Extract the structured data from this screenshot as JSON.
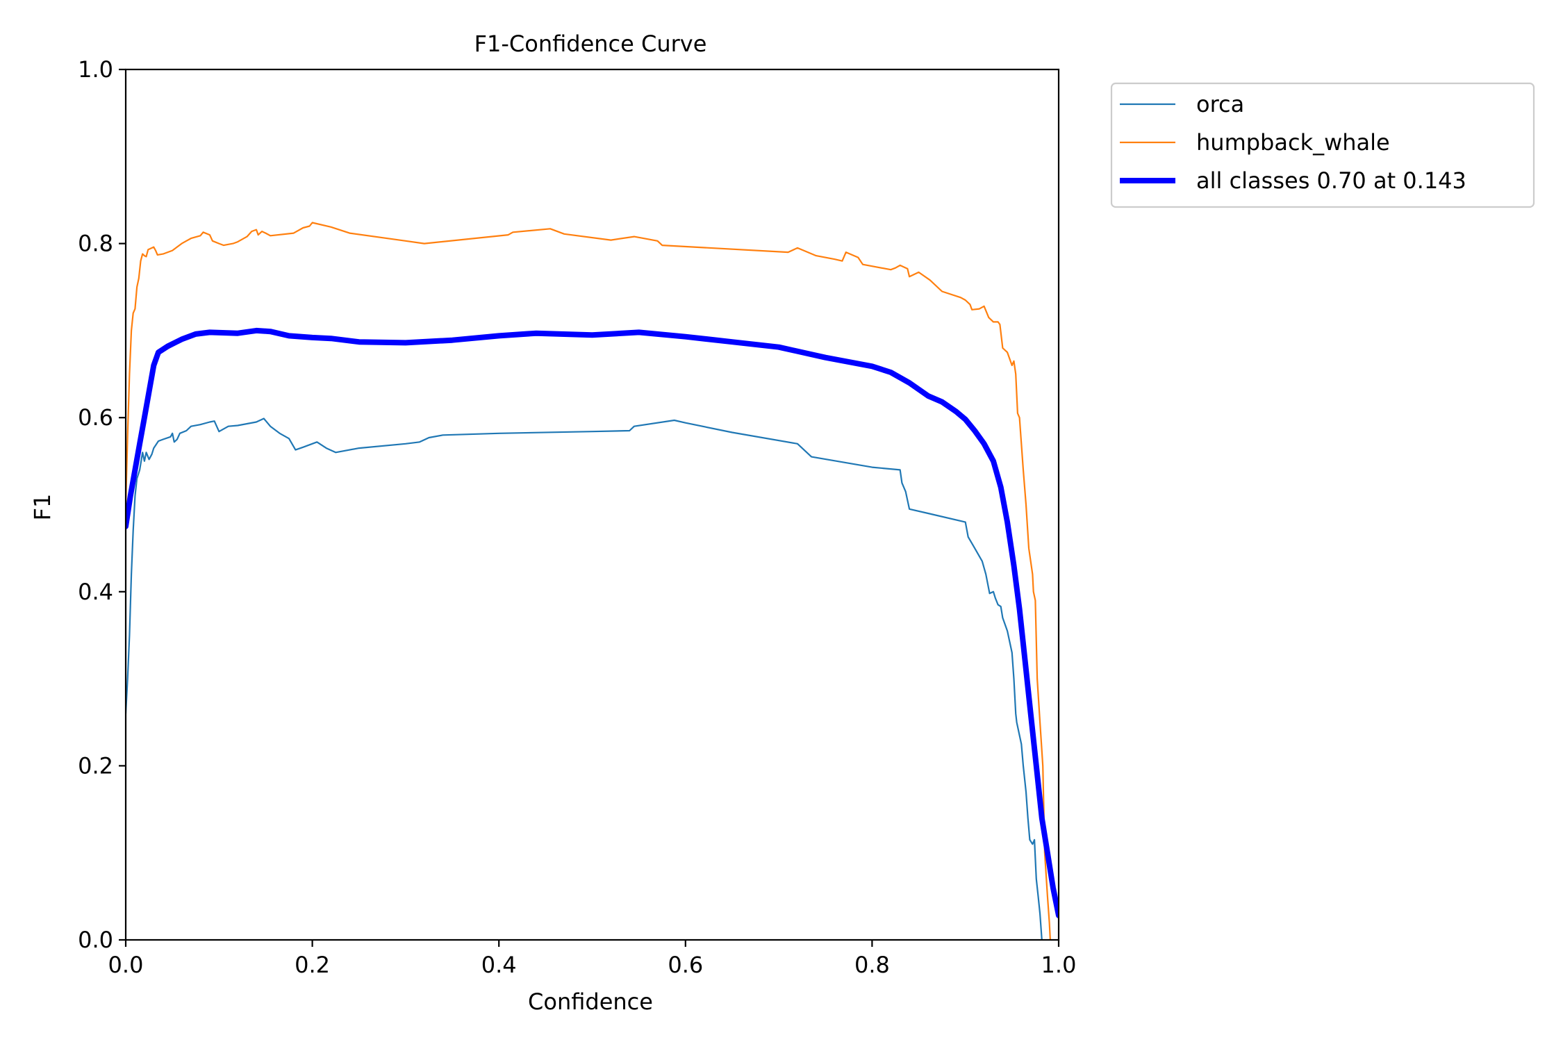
{
  "chart_data": {
    "type": "line",
    "title": "F1-Confidence Curve",
    "xlabel": "Confidence",
    "ylabel": "F1",
    "xlim": [
      0.0,
      1.0
    ],
    "ylim": [
      0.0,
      1.0
    ],
    "xticks": [
      "0.0",
      "0.2",
      "0.4",
      "0.6",
      "0.8",
      "1.0"
    ],
    "yticks": [
      "0.0",
      "0.2",
      "0.4",
      "0.6",
      "0.8",
      "1.0"
    ],
    "grid": false,
    "legend_position": "outside-top-right",
    "series": [
      {
        "name": "orca",
        "color": "#1f77b4",
        "weight": "thin",
        "points": [
          [
            0.0,
            0.26
          ],
          [
            0.002,
            0.3
          ],
          [
            0.004,
            0.35
          ],
          [
            0.006,
            0.42
          ],
          [
            0.008,
            0.47
          ],
          [
            0.01,
            0.51
          ],
          [
            0.012,
            0.53
          ],
          [
            0.015,
            0.54
          ],
          [
            0.018,
            0.56
          ],
          [
            0.02,
            0.55
          ],
          [
            0.022,
            0.56
          ],
          [
            0.025,
            0.552
          ],
          [
            0.028,
            0.558
          ],
          [
            0.03,
            0.565
          ],
          [
            0.035,
            0.573
          ],
          [
            0.04,
            0.575
          ],
          [
            0.048,
            0.578
          ],
          [
            0.05,
            0.582
          ],
          [
            0.052,
            0.572
          ],
          [
            0.055,
            0.575
          ],
          [
            0.058,
            0.582
          ],
          [
            0.065,
            0.585
          ],
          [
            0.07,
            0.59
          ],
          [
            0.08,
            0.592
          ],
          [
            0.09,
            0.595
          ],
          [
            0.095,
            0.596
          ],
          [
            0.1,
            0.584
          ],
          [
            0.11,
            0.59
          ],
          [
            0.12,
            0.591
          ],
          [
            0.14,
            0.595
          ],
          [
            0.148,
            0.599
          ],
          [
            0.155,
            0.59
          ],
          [
            0.165,
            0.582
          ],
          [
            0.175,
            0.576
          ],
          [
            0.182,
            0.563
          ],
          [
            0.19,
            0.566
          ],
          [
            0.2,
            0.57
          ],
          [
            0.205,
            0.572
          ],
          [
            0.215,
            0.565
          ],
          [
            0.225,
            0.56
          ],
          [
            0.25,
            0.565
          ],
          [
            0.3,
            0.57
          ],
          [
            0.315,
            0.572
          ],
          [
            0.325,
            0.577
          ],
          [
            0.34,
            0.58
          ],
          [
            0.4,
            0.582
          ],
          [
            0.5,
            0.584
          ],
          [
            0.54,
            0.585
          ],
          [
            0.545,
            0.59
          ],
          [
            0.588,
            0.597
          ],
          [
            0.6,
            0.594
          ],
          [
            0.65,
            0.583
          ],
          [
            0.72,
            0.57
          ],
          [
            0.735,
            0.555
          ],
          [
            0.8,
            0.543
          ],
          [
            0.83,
            0.54
          ],
          [
            0.832,
            0.525
          ],
          [
            0.836,
            0.515
          ],
          [
            0.84,
            0.495
          ],
          [
            0.86,
            0.49
          ],
          [
            0.9,
            0.48
          ],
          [
            0.903,
            0.463
          ],
          [
            0.91,
            0.45
          ],
          [
            0.918,
            0.435
          ],
          [
            0.922,
            0.42
          ],
          [
            0.926,
            0.398
          ],
          [
            0.93,
            0.4
          ],
          [
            0.932,
            0.393
          ],
          [
            0.935,
            0.385
          ],
          [
            0.938,
            0.383
          ],
          [
            0.94,
            0.37
          ],
          [
            0.945,
            0.355
          ],
          [
            0.95,
            0.33
          ],
          [
            0.952,
            0.3
          ],
          [
            0.954,
            0.26
          ],
          [
            0.955,
            0.25
          ],
          [
            0.958,
            0.235
          ],
          [
            0.96,
            0.225
          ],
          [
            0.962,
            0.2
          ],
          [
            0.965,
            0.17
          ],
          [
            0.967,
            0.14
          ],
          [
            0.969,
            0.115
          ],
          [
            0.972,
            0.11
          ],
          [
            0.974,
            0.115
          ],
          [
            0.976,
            0.07
          ],
          [
            0.978,
            0.05
          ],
          [
            0.98,
            0.03
          ],
          [
            0.982,
            0.0
          ]
        ]
      },
      {
        "name": "humpback_whale",
        "color": "#ff7f0e",
        "weight": "thin",
        "points": [
          [
            0.0,
            0.5
          ],
          [
            0.002,
            0.58
          ],
          [
            0.004,
            0.65
          ],
          [
            0.006,
            0.7
          ],
          [
            0.008,
            0.72
          ],
          [
            0.01,
            0.725
          ],
          [
            0.012,
            0.75
          ],
          [
            0.014,
            0.76
          ],
          [
            0.016,
            0.78
          ],
          [
            0.018,
            0.788
          ],
          [
            0.02,
            0.786
          ],
          [
            0.022,
            0.785
          ],
          [
            0.024,
            0.793
          ],
          [
            0.028,
            0.795
          ],
          [
            0.03,
            0.796
          ],
          [
            0.032,
            0.792
          ],
          [
            0.034,
            0.787
          ],
          [
            0.04,
            0.788
          ],
          [
            0.05,
            0.792
          ],
          [
            0.06,
            0.8
          ],
          [
            0.065,
            0.803
          ],
          [
            0.07,
            0.806
          ],
          [
            0.08,
            0.809
          ],
          [
            0.083,
            0.813
          ],
          [
            0.09,
            0.81
          ],
          [
            0.093,
            0.803
          ],
          [
            0.1,
            0.8
          ],
          [
            0.105,
            0.798
          ],
          [
            0.115,
            0.8
          ],
          [
            0.12,
            0.802
          ],
          [
            0.13,
            0.808
          ],
          [
            0.135,
            0.814
          ],
          [
            0.14,
            0.816
          ],
          [
            0.142,
            0.81
          ],
          [
            0.146,
            0.814
          ],
          [
            0.15,
            0.812
          ],
          [
            0.155,
            0.809
          ],
          [
            0.18,
            0.812
          ],
          [
            0.19,
            0.818
          ],
          [
            0.197,
            0.82
          ],
          [
            0.2,
            0.824
          ],
          [
            0.22,
            0.819
          ],
          [
            0.24,
            0.812
          ],
          [
            0.3,
            0.803
          ],
          [
            0.32,
            0.8
          ],
          [
            0.41,
            0.81
          ],
          [
            0.415,
            0.813
          ],
          [
            0.455,
            0.817
          ],
          [
            0.47,
            0.811
          ],
          [
            0.52,
            0.804
          ],
          [
            0.545,
            0.808
          ],
          [
            0.57,
            0.803
          ],
          [
            0.575,
            0.798
          ],
          [
            0.71,
            0.79
          ],
          [
            0.72,
            0.795
          ],
          [
            0.74,
            0.786
          ],
          [
            0.76,
            0.782
          ],
          [
            0.768,
            0.78
          ],
          [
            0.772,
            0.79
          ],
          [
            0.785,
            0.784
          ],
          [
            0.79,
            0.776
          ],
          [
            0.82,
            0.77
          ],
          [
            0.825,
            0.772
          ],
          [
            0.83,
            0.775
          ],
          [
            0.838,
            0.771
          ],
          [
            0.84,
            0.762
          ],
          [
            0.85,
            0.767
          ],
          [
            0.862,
            0.758
          ],
          [
            0.875,
            0.745
          ],
          [
            0.895,
            0.738
          ],
          [
            0.9,
            0.735
          ],
          [
            0.905,
            0.73
          ],
          [
            0.907,
            0.724
          ],
          [
            0.915,
            0.725
          ],
          [
            0.92,
            0.728
          ],
          [
            0.925,
            0.715
          ],
          [
            0.93,
            0.71
          ],
          [
            0.935,
            0.71
          ],
          [
            0.937,
            0.707
          ],
          [
            0.94,
            0.68
          ],
          [
            0.945,
            0.675
          ],
          [
            0.95,
            0.66
          ],
          [
            0.952,
            0.665
          ],
          [
            0.954,
            0.65
          ],
          [
            0.956,
            0.605
          ],
          [
            0.958,
            0.6
          ],
          [
            0.962,
            0.54
          ],
          [
            0.965,
            0.5
          ],
          [
            0.968,
            0.45
          ],
          [
            0.972,
            0.42
          ],
          [
            0.973,
            0.4
          ],
          [
            0.975,
            0.39
          ],
          [
            0.977,
            0.3
          ],
          [
            0.98,
            0.25
          ],
          [
            0.983,
            0.2
          ],
          [
            0.985,
            0.1
          ],
          [
            0.988,
            0.05
          ],
          [
            0.99,
            0.02
          ],
          [
            0.991,
            0.0
          ]
        ]
      },
      {
        "name": "all classes 0.70 at 0.143",
        "color": "#0000ff",
        "weight": "thick",
        "points": [
          [
            0.0,
            0.475
          ],
          [
            0.005,
            0.51
          ],
          [
            0.01,
            0.54
          ],
          [
            0.015,
            0.57
          ],
          [
            0.02,
            0.6
          ],
          [
            0.025,
            0.63
          ],
          [
            0.03,
            0.66
          ],
          [
            0.035,
            0.675
          ],
          [
            0.045,
            0.682
          ],
          [
            0.06,
            0.69
          ],
          [
            0.075,
            0.696
          ],
          [
            0.09,
            0.698
          ],
          [
            0.12,
            0.697
          ],
          [
            0.14,
            0.7
          ],
          [
            0.155,
            0.699
          ],
          [
            0.175,
            0.694
          ],
          [
            0.2,
            0.692
          ],
          [
            0.22,
            0.691
          ],
          [
            0.25,
            0.687
          ],
          [
            0.3,
            0.686
          ],
          [
            0.35,
            0.689
          ],
          [
            0.4,
            0.694
          ],
          [
            0.44,
            0.697
          ],
          [
            0.5,
            0.695
          ],
          [
            0.55,
            0.698
          ],
          [
            0.6,
            0.693
          ],
          [
            0.65,
            0.687
          ],
          [
            0.7,
            0.681
          ],
          [
            0.75,
            0.669
          ],
          [
            0.8,
            0.659
          ],
          [
            0.82,
            0.652
          ],
          [
            0.84,
            0.64
          ],
          [
            0.86,
            0.625
          ],
          [
            0.875,
            0.618
          ],
          [
            0.89,
            0.607
          ],
          [
            0.9,
            0.598
          ],
          [
            0.91,
            0.585
          ],
          [
            0.92,
            0.57
          ],
          [
            0.93,
            0.55
          ],
          [
            0.938,
            0.52
          ],
          [
            0.945,
            0.48
          ],
          [
            0.952,
            0.43
          ],
          [
            0.958,
            0.38
          ],
          [
            0.964,
            0.32
          ],
          [
            0.97,
            0.26
          ],
          [
            0.976,
            0.2
          ],
          [
            0.982,
            0.14
          ],
          [
            0.988,
            0.1
          ],
          [
            0.994,
            0.06
          ],
          [
            1.0,
            0.028
          ]
        ]
      }
    ]
  }
}
